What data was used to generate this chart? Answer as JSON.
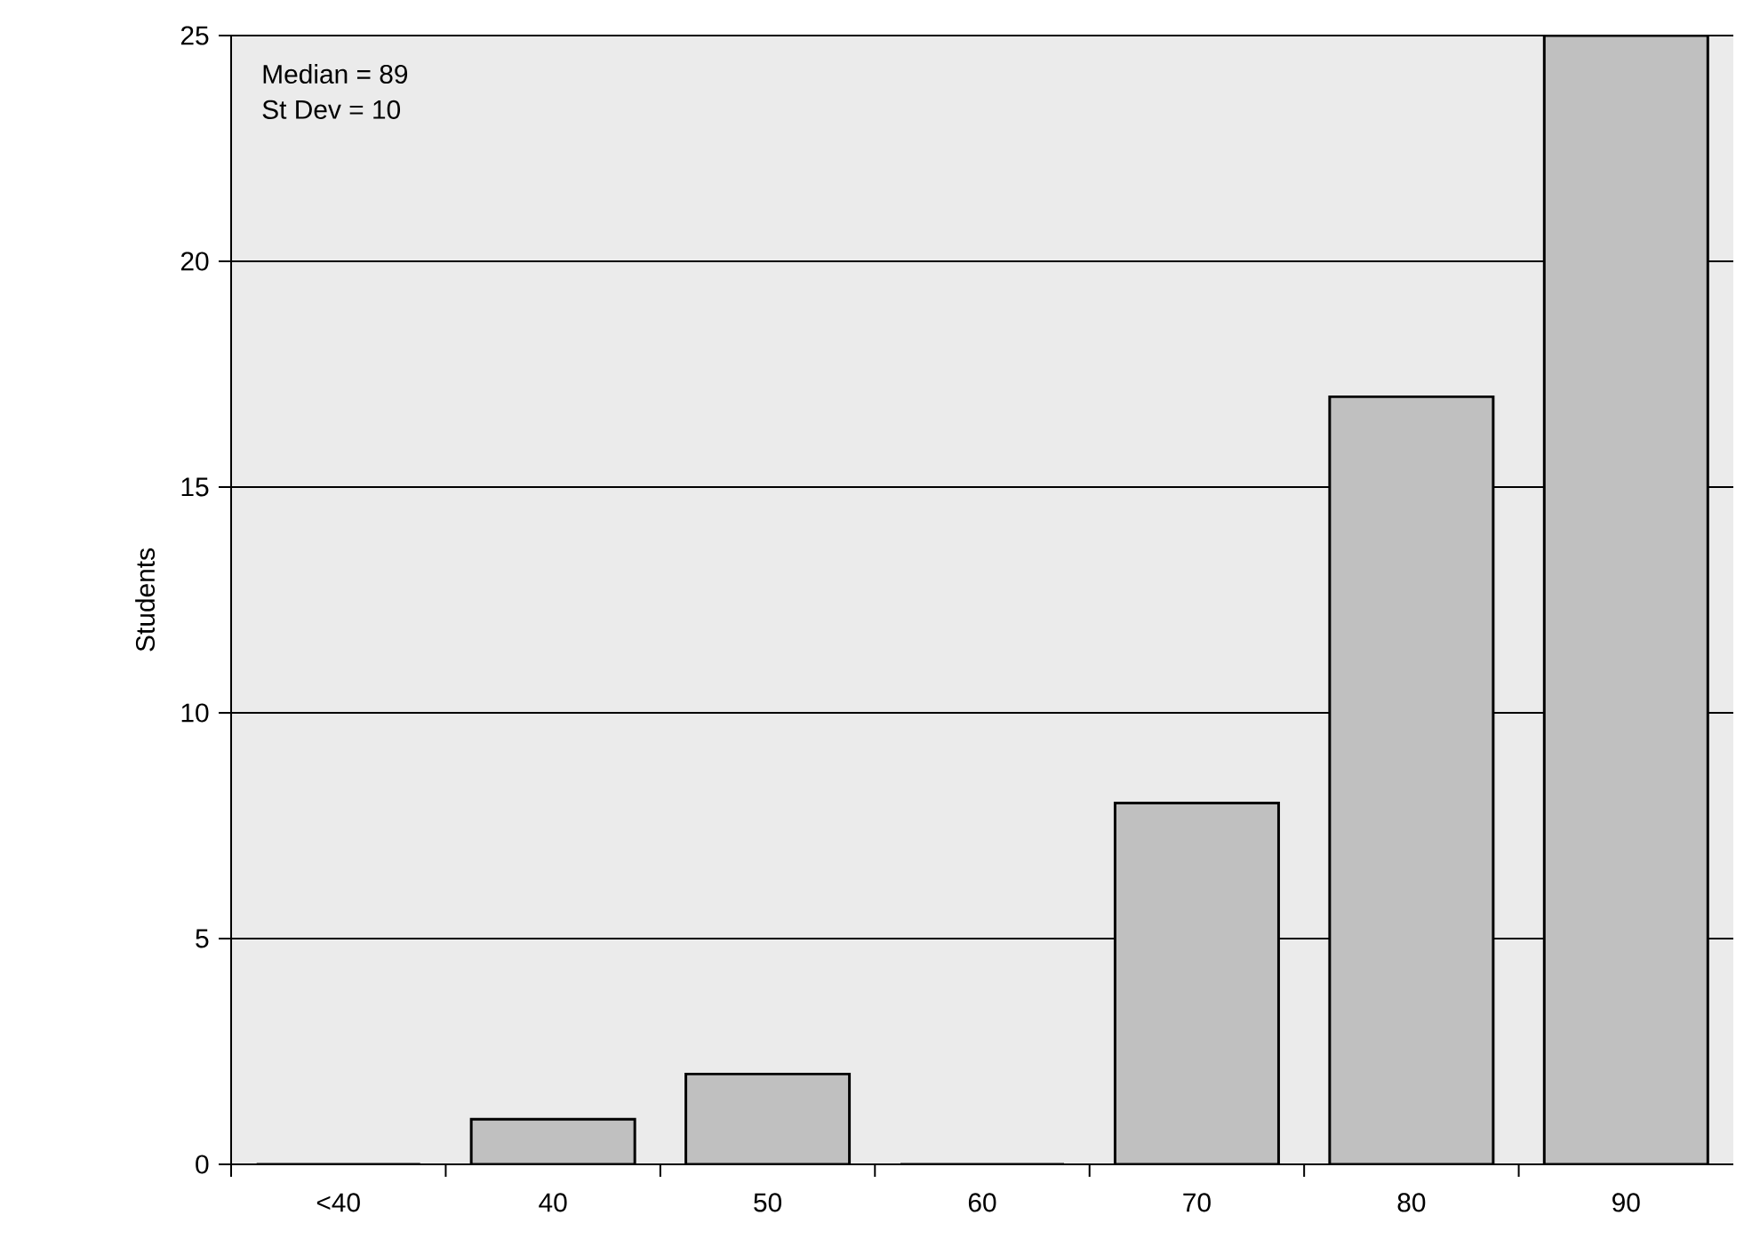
{
  "chart_data": {
    "type": "bar",
    "ylabel": "Students",
    "categories": [
      "<40",
      "40",
      "50",
      "60",
      "70",
      "80",
      "90"
    ],
    "values": [
      0,
      1,
      2,
      0,
      8,
      17,
      25
    ],
    "color": "#c0c0c0",
    "ylim": [
      0,
      25
    ],
    "yticks": [
      0,
      5,
      10,
      15,
      20,
      25
    ],
    "grid": "y",
    "annotations": [
      "Median = 89",
      "St Dev  = 10"
    ]
  }
}
